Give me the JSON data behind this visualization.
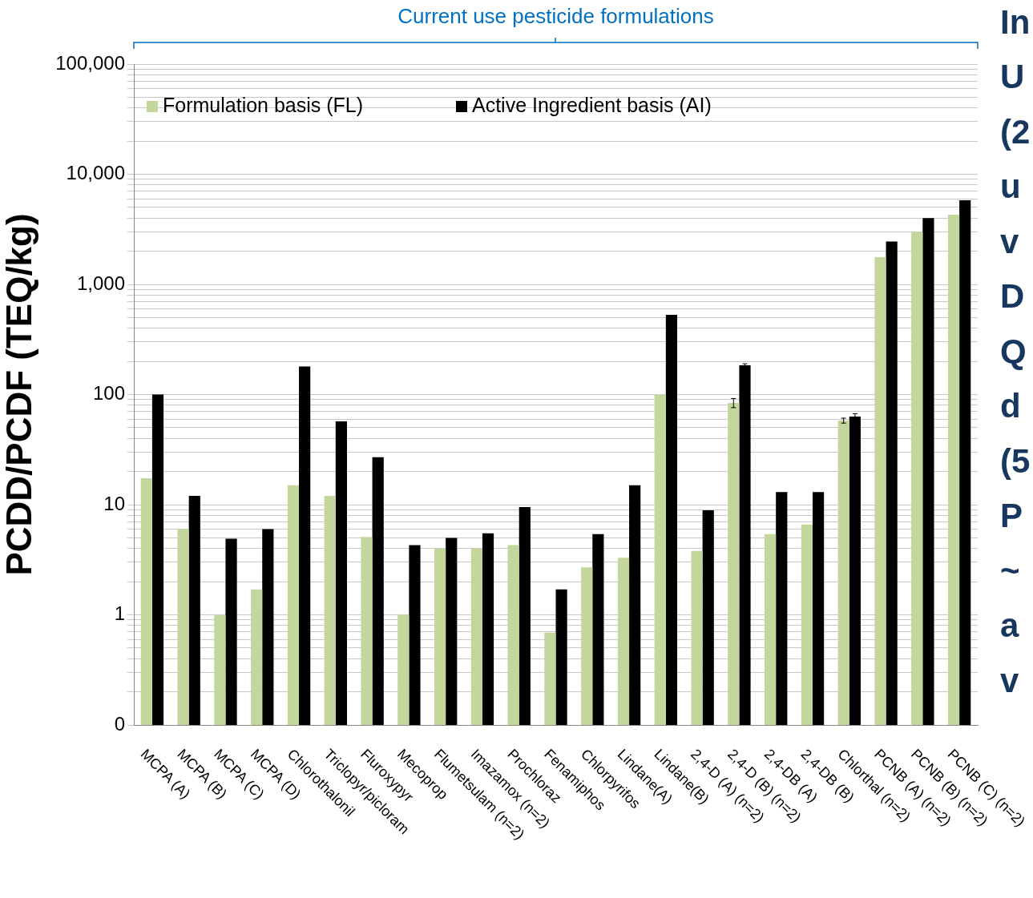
{
  "chart_data": {
    "type": "bar",
    "ylabel": "PCDD/PCDF (TEQ/kg)",
    "annotations": [
      "Current use pesticide formulations",
      "In",
      "U",
      "(2",
      "u",
      "v",
      "D",
      "Q",
      "d",
      "(5",
      "P",
      "~",
      "a",
      "v"
    ],
    "categories": [
      "MCPA (A)",
      "MCPA (B)",
      "MCPA (C)",
      "MCPA (D)",
      "Chlorothalonil",
      "Triclopyr/picloram",
      "Fluroxypyr",
      "Mecoprop",
      "Flumetsulam (n=2)",
      "Imazamox (n=2)",
      "Prochloraz",
      "Fenamiphos",
      "Chlorpyrifos",
      "Lindane(A)",
      "Lindane(B)",
      "2,4-D (A) (n=2)",
      "2,4-D (B) (n=2)",
      "2,4-DB (A)",
      "2,4-DB (B)",
      "Chlorthal (n=2)",
      "PCNB (A) (n=2)",
      "PCNB (B) (n=2)",
      "PCNB (C) (n=2)"
    ],
    "series": [
      {
        "name": "Formulation basis (FL)",
        "color": "#c3d69b",
        "values": [
          17.4,
          6,
          1,
          1.7,
          15,
          12,
          5.1,
          1,
          4,
          4,
          4.3,
          0.69,
          2.7,
          3.3,
          100,
          3.8,
          84,
          5.4,
          6.6,
          58,
          1770,
          3000,
          4300
        ],
        "errors": [
          null,
          null,
          null,
          null,
          null,
          null,
          null,
          null,
          null,
          null,
          null,
          null,
          null,
          null,
          null,
          null,
          8,
          null,
          null,
          3,
          null,
          null,
          null
        ]
      },
      {
        "name": "Active Ingredient basis (AI)",
        "color": "#000000",
        "values": [
          100,
          12,
          4.9,
          6,
          180,
          57,
          27,
          4.3,
          5,
          5.5,
          9.5,
          1.7,
          5.4,
          15,
          530,
          8.9,
          184,
          13,
          13,
          63,
          2450,
          4000,
          5800
        ],
        "errors": [
          null,
          null,
          null,
          null,
          null,
          null,
          null,
          null,
          null,
          null,
          null,
          null,
          null,
          null,
          null,
          null,
          6,
          null,
          null,
          4,
          null,
          null,
          null
        ]
      }
    ],
    "log": "y",
    "ylim": [
      0.1,
      100000
    ],
    "yticks": [
      {
        "value": 0.1,
        "label": "0"
      },
      {
        "value": 0.2,
        "label": null
      },
      {
        "value": 0.3,
        "label": null
      },
      {
        "value": 0.4,
        "label": null
      },
      {
        "value": 0.5,
        "label": null
      },
      {
        "value": 0.6,
        "label": null
      },
      {
        "value": 0.7,
        "label": null
      },
      {
        "value": 0.8,
        "label": null
      },
      {
        "value": 0.9,
        "label": null
      },
      1,
      {
        "value": 2,
        "label": null
      },
      {
        "value": 3,
        "label": null
      },
      {
        "value": 4,
        "label": null
      },
      {
        "value": 5,
        "label": null
      },
      {
        "value": 6,
        "label": null
      },
      {
        "value": 7,
        "label": null
      },
      {
        "value": 8,
        "label": null
      },
      {
        "value": 9,
        "label": null
      },
      10,
      {
        "value": 20,
        "label": null
      },
      {
        "value": 30,
        "label": null
      },
      {
        "value": 40,
        "label": null
      },
      {
        "value": 50,
        "label": null
      },
      {
        "value": 60,
        "label": null
      },
      {
        "value": 70,
        "label": null
      },
      {
        "value": 80,
        "label": null
      },
      {
        "value": 90,
        "label": null
      },
      100,
      {
        "value": 200,
        "label": null
      },
      {
        "value": 300,
        "label": null
      },
      {
        "value": 400,
        "label": null
      },
      {
        "value": 500,
        "label": null
      },
      {
        "value": 600,
        "label": null
      },
      {
        "value": 700,
        "label": null
      },
      {
        "value": 800,
        "label": null
      },
      {
        "value": 900,
        "label": null
      },
      {
        "value": 1000,
        "label": "1,000"
      },
      {
        "value": 2000,
        "label": null
      },
      {
        "value": 3000,
        "label": null
      },
      {
        "value": 4000,
        "label": null
      },
      {
        "value": 5000,
        "label": null
      },
      {
        "value": 6000,
        "label": null
      },
      {
        "value": 7000,
        "label": null
      },
      {
        "value": 8000,
        "label": null
      },
      {
        "value": 9000,
        "label": null
      },
      {
        "value": 10000,
        "label": "10,000"
      },
      {
        "value": 20000,
        "label": null
      },
      {
        "value": 30000,
        "label": null
      },
      {
        "value": 40000,
        "label": null
      },
      {
        "value": 50000,
        "label": null
      },
      {
        "value": 60000,
        "label": null
      },
      {
        "value": 70000,
        "label": null
      },
      {
        "value": 80000,
        "label": null
      },
      {
        "value": 90000,
        "label": null
      },
      {
        "value": 100000,
        "label": "100,000"
      }
    ],
    "grid": "y",
    "legend": "top left"
  }
}
